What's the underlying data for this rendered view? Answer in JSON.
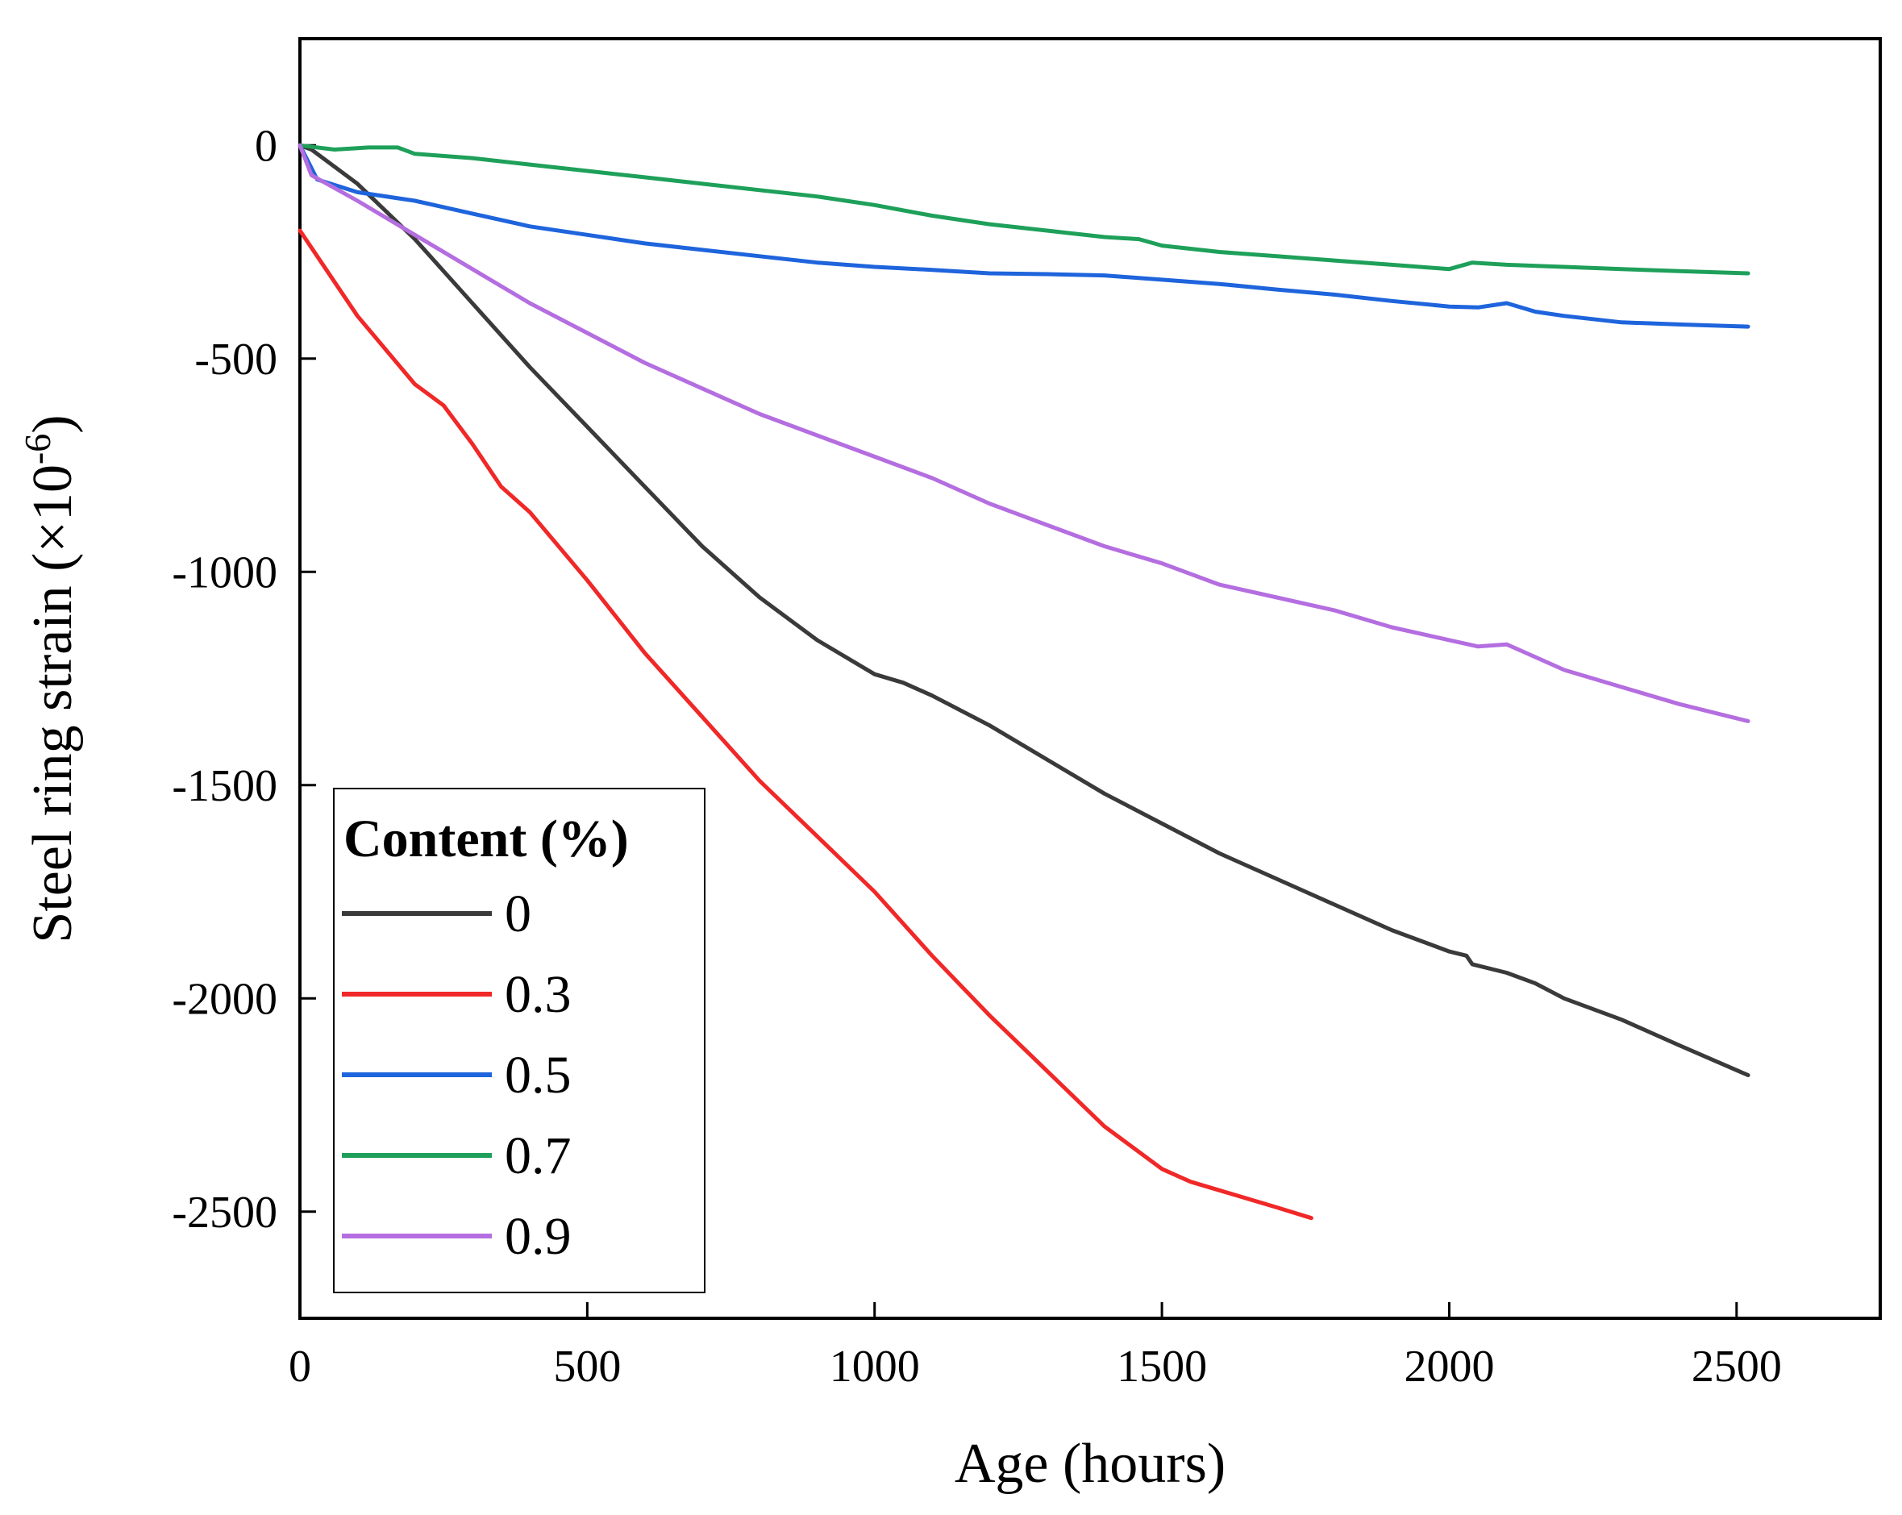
{
  "chart_data": {
    "type": "line",
    "title": "",
    "xlabel": "Age (hours)",
    "ylabel_main": "Steel ring strain (×10",
    "ylabel_exp": "-6",
    "ylabel_close": ")",
    "xlim": [
      0,
      2750
    ],
    "ylim": [
      -2750,
      250
    ],
    "xticks": [
      0,
      500,
      1000,
      1500,
      2000,
      2500
    ],
    "xtick_labels": [
      "0",
      "500",
      "1000",
      "1500",
      "2000",
      "2500"
    ],
    "yticks": [
      0,
      -500,
      -1000,
      -1500,
      -2000,
      -2500
    ],
    "ytick_labels": [
      "0",
      "-500",
      "-1000",
      "-1500",
      "-2000",
      "-2500"
    ],
    "legend": {
      "title": "Content (%)",
      "position": "bottom-left"
    },
    "series": [
      {
        "name": "0",
        "color": "#3a3a3a",
        "x": [
          0,
          20,
          100,
          200,
          300,
          400,
          500,
          600,
          700,
          800,
          900,
          1000,
          1050,
          1100,
          1200,
          1300,
          1400,
          1500,
          1600,
          1700,
          1800,
          1900,
          2000,
          2030,
          2040,
          2100,
          2150,
          2200,
          2300,
          2400,
          2520
        ],
        "y": [
          0,
          -10,
          -90,
          -220,
          -370,
          -520,
          -660,
          -800,
          -940,
          -1060,
          -1160,
          -1240,
          -1260,
          -1290,
          -1360,
          -1440,
          -1520,
          -1590,
          -1660,
          -1720,
          -1780,
          -1840,
          -1890,
          -1900,
          -1920,
          -1940,
          -1965,
          -2000,
          -2050,
          -2110,
          -2180
        ]
      },
      {
        "name": "0.3",
        "color": "#f02828",
        "x": [
          0,
          100,
          200,
          250,
          300,
          350,
          400,
          500,
          600,
          700,
          800,
          900,
          1000,
          1100,
          1200,
          1300,
          1400,
          1500,
          1550,
          1600,
          1700,
          1760
        ],
        "y": [
          -200,
          -400,
          -560,
          -610,
          -700,
          -800,
          -860,
          -1020,
          -1190,
          -1340,
          -1490,
          -1620,
          -1750,
          -1900,
          -2040,
          -2170,
          -2300,
          -2400,
          -2430,
          -2450,
          -2490,
          -2515
        ]
      },
      {
        "name": "0.5",
        "color": "#1e64dc",
        "x": [
          0,
          30,
          100,
          200,
          300,
          400,
          500,
          600,
          700,
          800,
          900,
          1000,
          1100,
          1200,
          1300,
          1400,
          1500,
          1600,
          1700,
          1800,
          1900,
          2000,
          2050,
          2100,
          2150,
          2200,
          2300,
          2400,
          2520
        ],
        "y": [
          0,
          -80,
          -110,
          -130,
          -160,
          -190,
          -210,
          -230,
          -245,
          -260,
          -275,
          -285,
          -292,
          -300,
          -302,
          -305,
          -315,
          -325,
          -338,
          -350,
          -365,
          -378,
          -380,
          -370,
          -390,
          -400,
          -415,
          -420,
          -425
        ]
      },
      {
        "name": "0.7",
        "color": "#1ea05a",
        "x": [
          0,
          60,
          120,
          170,
          200,
          300,
          400,
          500,
          600,
          700,
          800,
          900,
          1000,
          1100,
          1200,
          1300,
          1400,
          1460,
          1500,
          1600,
          1700,
          1800,
          1900,
          2000,
          2040,
          2100,
          2200,
          2300,
          2400,
          2520
        ],
        "y": [
          0,
          -10,
          -5,
          -5,
          -20,
          -30,
          -45,
          -60,
          -75,
          -90,
          -105,
          -120,
          -140,
          -165,
          -185,
          -200,
          -215,
          -220,
          -235,
          -250,
          -260,
          -270,
          -280,
          -290,
          -275,
          -280,
          -285,
          -290,
          -295,
          -300
        ]
      },
      {
        "name": "0.9",
        "color": "#b46ee0",
        "x": [
          0,
          20,
          100,
          200,
          300,
          400,
          500,
          600,
          700,
          800,
          900,
          1000,
          1100,
          1200,
          1300,
          1400,
          1500,
          1600,
          1700,
          1800,
          1900,
          2000,
          2050,
          2100,
          2150,
          2200,
          2300,
          2400,
          2520
        ],
        "y": [
          0,
          -70,
          -130,
          -210,
          -290,
          -370,
          -440,
          -510,
          -570,
          -630,
          -680,
          -730,
          -780,
          -840,
          -890,
          -940,
          -980,
          -1030,
          -1060,
          -1090,
          -1130,
          -1160,
          -1175,
          -1170,
          -1200,
          -1230,
          -1270,
          -1310,
          -1350
        ]
      }
    ]
  }
}
